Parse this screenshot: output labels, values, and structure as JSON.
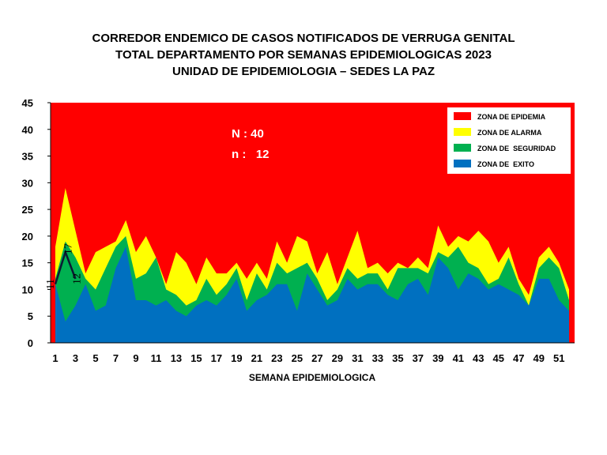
{
  "title_lines": [
    "CORREDOR ENDEMICO DE CASOS NOTIFICADOS DE VERRUGA GENITAL",
    "TOTAL DEPARTAMENTO POR SEMANAS EPIDEMIOLOGICAS 2023",
    "UNIDAD DE EPIDEMIOLOGIA – SEDES LA PAZ"
  ],
  "stats": {
    "N_label": "N : 40",
    "n_label": "n :   12"
  },
  "chart_data": {
    "type": "area",
    "xlabel": "SEMANA EPIDEMIOLOGICA",
    "ylabel": "",
    "xlim": [
      1,
      52
    ],
    "ylim": [
      0,
      45
    ],
    "yticks": [
      0,
      5,
      10,
      15,
      20,
      25,
      30,
      35,
      40,
      45
    ],
    "xticks": [
      1,
      3,
      5,
      7,
      9,
      11,
      13,
      15,
      17,
      19,
      21,
      23,
      25,
      27,
      29,
      31,
      33,
      35,
      37,
      39,
      41,
      43,
      45,
      47,
      49,
      51
    ],
    "legend_position": "top-right",
    "legend": [
      {
        "label": "ZONA DE EPIDEMIA",
        "color": "#FF0000"
      },
      {
        "label": "ZONA DE ALARMA",
        "color": "#FFFF00"
      },
      {
        "label": "ZONA DE  SEGURIDAD",
        "color": "#00B050"
      },
      {
        "label": "ZONA DE  EXITO",
        "color": "#0070C0"
      }
    ],
    "zones": {
      "exito": [
        11,
        4,
        7,
        11,
        6,
        7,
        14,
        18,
        8,
        8,
        7,
        8,
        6,
        5,
        7,
        8,
        7,
        9,
        12,
        6,
        8,
        9,
        11,
        11,
        6,
        13,
        10,
        7,
        8,
        12,
        10,
        11,
        11,
        9,
        8,
        11,
        12,
        9,
        16,
        14,
        10,
        13,
        12,
        10,
        11,
        10,
        9,
        7,
        12,
        12,
        8,
        6
      ],
      "seguridad": [
        12,
        19,
        16,
        12,
        10,
        14,
        18,
        20,
        12,
        13,
        16,
        10,
        9,
        7,
        8,
        12,
        9,
        11,
        14,
        8,
        13,
        10,
        15,
        13,
        14,
        15,
        12,
        8,
        10,
        14,
        12,
        13,
        13,
        10,
        14,
        14,
        14,
        13,
        17,
        16,
        18,
        15,
        14,
        11,
        12,
        16,
        11,
        7,
        14,
        16,
        14,
        8
      ],
      "alarma": [
        18,
        29,
        21,
        13,
        17,
        18,
        19,
        23,
        17,
        20,
        16,
        11,
        17,
        15,
        11,
        16,
        13,
        13,
        15,
        12,
        15,
        12,
        19,
        15,
        20,
        19,
        13,
        17,
        11,
        16,
        21,
        14,
        15,
        13,
        15,
        14,
        16,
        14,
        22,
        18,
        20,
        19,
        21,
        19,
        15,
        18,
        12,
        9,
        16,
        18,
        15,
        10
      ]
    },
    "cases_line": {
      "x": [
        1,
        2,
        3
      ],
      "y": [
        11,
        17,
        12
      ],
      "labels": [
        "11",
        "17",
        "12"
      ]
    }
  }
}
